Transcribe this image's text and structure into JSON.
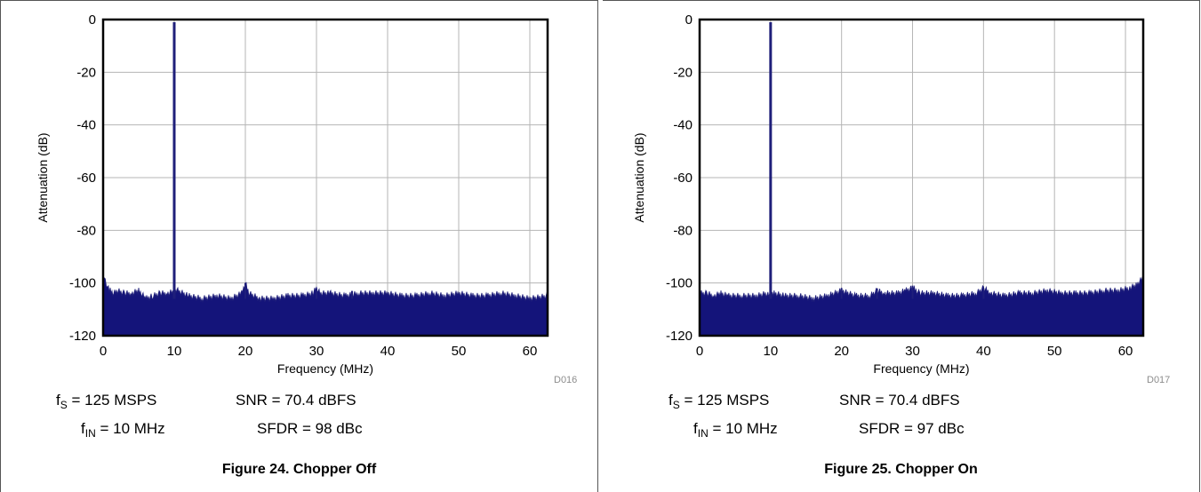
{
  "chart_data": [
    {
      "type": "line",
      "title": "",
      "xlabel": "Frequency (MHz)",
      "ylabel": "Attenuation (dB)",
      "xlim": [
        0,
        62.5
      ],
      "ylim": [
        -120,
        0
      ],
      "xticks": [
        "0",
        "10",
        "20",
        "30",
        "40",
        "50",
        "60"
      ],
      "yticks": [
        "0",
        "-20",
        "-40",
        "-60",
        "-80",
        "-100",
        "-120"
      ],
      "grid": true,
      "line_color": "#1f1f7a",
      "fill_color": "#14147a",
      "noise_floor": [
        [
          0,
          -97
        ],
        [
          0.3,
          -99
        ],
        [
          0.6,
          -101
        ],
        [
          1,
          -103
        ],
        [
          1.5,
          -104
        ],
        [
          2,
          -103
        ],
        [
          3,
          -104
        ],
        [
          4,
          -104
        ],
        [
          5,
          -103
        ],
        [
          6,
          -106
        ],
        [
          7,
          -105
        ],
        [
          8,
          -104
        ],
        [
          9,
          -104
        ],
        [
          10.5,
          -103
        ],
        [
          12,
          -105
        ],
        [
          14,
          -106
        ],
        [
          16,
          -105
        ],
        [
          18,
          -106
        ],
        [
          19.5,
          -104
        ],
        [
          20,
          -100
        ],
        [
          20.5,
          -104
        ],
        [
          22,
          -106
        ],
        [
          24,
          -106
        ],
        [
          26,
          -105
        ],
        [
          28,
          -105
        ],
        [
          29.5,
          -104
        ],
        [
          30,
          -102
        ],
        [
          30.5,
          -104
        ],
        [
          32,
          -104
        ],
        [
          34,
          -105
        ],
        [
          36,
          -104
        ],
        [
          38,
          -104
        ],
        [
          40,
          -104
        ],
        [
          42,
          -105
        ],
        [
          44,
          -105
        ],
        [
          46,
          -104
        ],
        [
          48,
          -105
        ],
        [
          50,
          -104
        ],
        [
          52,
          -105
        ],
        [
          54,
          -105
        ],
        [
          56,
          -104
        ],
        [
          58,
          -105
        ],
        [
          60,
          -106
        ],
        [
          62.5,
          -105
        ]
      ],
      "peaks": [
        {
          "x": 10,
          "y": -1
        },
        {
          "x": 20,
          "y": -100
        },
        {
          "x": 30,
          "y": -102
        },
        {
          "x": 35,
          "y": -103
        }
      ]
    },
    {
      "type": "line",
      "title": "",
      "xlabel": "Frequency (MHz)",
      "ylabel": "Attenuation (dB)",
      "xlim": [
        0,
        62.5
      ],
      "ylim": [
        -120,
        0
      ],
      "xticks": [
        "0",
        "10",
        "20",
        "30",
        "40",
        "50",
        "60"
      ],
      "yticks": [
        "0",
        "-20",
        "-40",
        "-60",
        "-80",
        "-100",
        "-120"
      ],
      "grid": true,
      "line_color": "#1f1f7a",
      "fill_color": "#14147a",
      "noise_floor": [
        [
          0,
          -104
        ],
        [
          1,
          -104
        ],
        [
          2,
          -105
        ],
        [
          3,
          -104
        ],
        [
          4,
          -105
        ],
        [
          6,
          -105
        ],
        [
          8,
          -105
        ],
        [
          9.5,
          -104
        ],
        [
          10.5,
          -104
        ],
        [
          12,
          -105
        ],
        [
          14,
          -105
        ],
        [
          16,
          -106
        ],
        [
          18,
          -105
        ],
        [
          20,
          -103
        ],
        [
          22,
          -105
        ],
        [
          24,
          -105
        ],
        [
          25,
          -103
        ],
        [
          26,
          -104
        ],
        [
          28,
          -104
        ],
        [
          29,
          -103
        ],
        [
          30,
          -102
        ],
        [
          31,
          -104
        ],
        [
          33,
          -104
        ],
        [
          35,
          -105
        ],
        [
          37,
          -105
        ],
        [
          39,
          -104
        ],
        [
          40,
          -102
        ],
        [
          41,
          -104
        ],
        [
          43,
          -105
        ],
        [
          45,
          -104
        ],
        [
          47,
          -104
        ],
        [
          49,
          -103
        ],
        [
          51,
          -104
        ],
        [
          53,
          -104
        ],
        [
          55,
          -104
        ],
        [
          57,
          -103
        ],
        [
          59,
          -103
        ],
        [
          60.5,
          -102
        ],
        [
          61.5,
          -101
        ],
        [
          62.5,
          -98
        ]
      ],
      "peaks": [
        {
          "x": 10,
          "y": -1
        },
        {
          "x": 20,
          "y": -102
        },
        {
          "x": 25,
          "y": -102
        },
        {
          "x": 30,
          "y": -101
        },
        {
          "x": 40,
          "y": -102
        }
      ]
    }
  ],
  "panels": [
    {
      "code": "D016",
      "fs_label": "f",
      "fs_sub": "S",
      "fs_value": " = 125 MSPS",
      "snr": "SNR = 70.4 dBFS",
      "fin_label": "f",
      "fin_sub": "IN",
      "fin_value": " = 10 MHz",
      "sfdr": "SFDR = 98 dBc",
      "caption": "Figure 24. Chopper Off"
    },
    {
      "code": "D017",
      "fs_label": "f",
      "fs_sub": "S",
      "fs_value": " = 125 MSPS",
      "snr": "SNR = 70.4 dBFS",
      "fin_label": "f",
      "fin_sub": "IN",
      "fin_value": " = 10 MHz",
      "sfdr": "SFDR = 97 dBc",
      "caption": "Figure 25. Chopper On"
    }
  ]
}
